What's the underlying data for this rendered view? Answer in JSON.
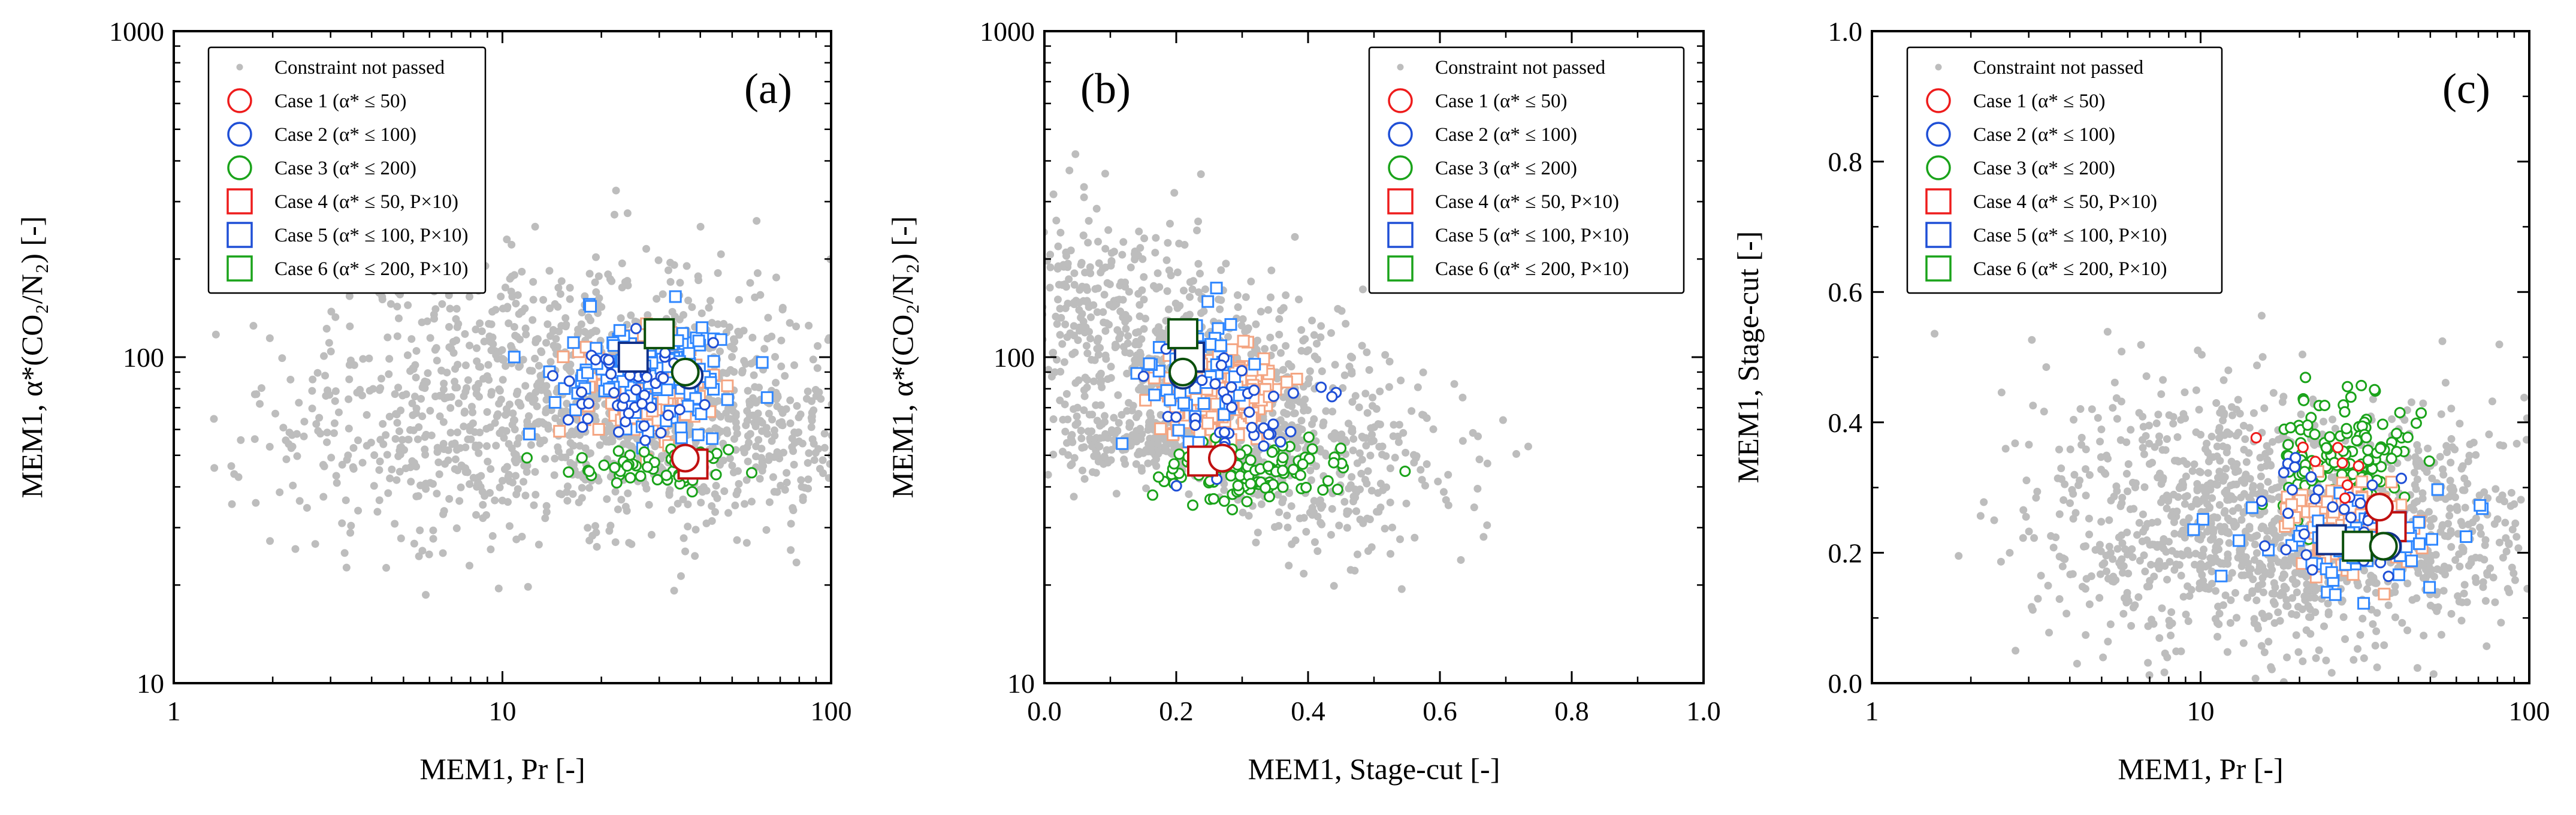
{
  "chart_data": [
    {
      "id": "a",
      "type": "scatter",
      "panel_label": "(a)",
      "xlabel": "MEM1, Pr [-]",
      "ylabel": "MEM1, α*(CO₂/N₂) [-]",
      "xscale": "log",
      "xlim": [
        1,
        100
      ],
      "yscale": "log",
      "ylim": [
        10,
        1000
      ],
      "xticks": [
        {
          "v": 1,
          "t": "1"
        },
        {
          "v": 10,
          "t": "10"
        },
        {
          "v": 100,
          "t": "100"
        }
      ],
      "yticks": [
        {
          "v": 10,
          "t": "10"
        },
        {
          "v": 100,
          "t": "100"
        },
        {
          "v": 1000,
          "t": "1000"
        }
      ],
      "legend_position": "top-left",
      "clouds": [
        {
          "series": 0,
          "count": 1100,
          "cx": 18,
          "cy": 78,
          "sx": 0.4,
          "sy": 0.2,
          "seed": 11
        },
        {
          "series": 0,
          "count": 250,
          "cx": 50,
          "cy": 55,
          "sx": 0.3,
          "sy": 0.12,
          "seed": 12
        },
        {
          "series": 0,
          "count": 120,
          "cx": 5,
          "cy": 45,
          "sx": 0.25,
          "sy": 0.15,
          "seed": 13
        },
        {
          "series": 4,
          "count": 230,
          "cx": 28,
          "cy": 82,
          "sx": 0.09,
          "sy": 0.07,
          "seed": 14
        },
        {
          "series": 5,
          "count": 120,
          "cx": 30,
          "cy": 90,
          "sx": 0.14,
          "sy": 0.09,
          "seed": 15
        },
        {
          "series": 3,
          "count": 55,
          "cx": 30,
          "cy": 46,
          "sx": 0.13,
          "sy": 0.03,
          "seed": 16
        },
        {
          "series": 2,
          "count": 45,
          "cx": 24,
          "cy": 75,
          "sx": 0.1,
          "sy": 0.08,
          "seed": 17
        }
      ],
      "highlights": [
        {
          "series": 3,
          "x": 38,
          "y": 47
        },
        {
          "series": 4,
          "x": 25,
          "y": 100
        },
        {
          "series": 5,
          "x": 30,
          "y": 118
        },
        {
          "series": 0,
          "x": 36,
          "y": 49,
          "case": 0
        },
        {
          "series": 1,
          "x": 37,
          "y": 88
        },
        {
          "series": 2,
          "x": 36,
          "y": 90
        }
      ]
    },
    {
      "id": "b",
      "type": "scatter",
      "panel_label": "(b)",
      "xlabel": "MEM1, Stage-cut [-]",
      "ylabel": "MEM1, α*(CO₂/N₂) [-]",
      "xscale": "linear",
      "xlim": [
        0,
        1
      ],
      "yscale": "log",
      "ylim": [
        10,
        1000
      ],
      "xticks": [
        {
          "v": 0,
          "t": "0.0"
        },
        {
          "v": 0.2,
          "t": "0.2"
        },
        {
          "v": 0.4,
          "t": "0.4"
        },
        {
          "v": 0.6,
          "t": "0.6"
        },
        {
          "v": 0.8,
          "t": "0.8"
        },
        {
          "v": 1.0,
          "t": "1.0"
        }
      ],
      "yticks": [
        {
          "v": 10,
          "t": "10"
        },
        {
          "v": 100,
          "t": "100"
        },
        {
          "v": 1000,
          "t": "1000"
        }
      ],
      "legend_position": "top-right",
      "clouds": [
        {
          "series": 0,
          "count": 900,
          "trend": "decay",
          "x0": 0.0,
          "x1": 0.5,
          "y0": 170,
          "y1": 45,
          "sx": 0.05,
          "sy": 0.17,
          "seed": 21
        },
        {
          "series": 0,
          "count": 300,
          "cx": 0.18,
          "cy": 55,
          "sx": 0.09,
          "sy": 0.06,
          "seed": 22
        },
        {
          "series": 0,
          "count": 60,
          "cx": 0.55,
          "cy": 45,
          "sx": 0.08,
          "sy": 0.12,
          "seed": 23
        },
        {
          "series": 4,
          "count": 230,
          "cx": 0.26,
          "cy": 75,
          "sx": 0.04,
          "sy": 0.07,
          "seed": 24
        },
        {
          "series": 3,
          "count": 110,
          "cx": 0.32,
          "cy": 44,
          "sx": 0.07,
          "sy": 0.04,
          "seed": 25
        },
        {
          "series": 5,
          "count": 50,
          "cx": 0.24,
          "cy": 95,
          "sx": 0.05,
          "sy": 0.12,
          "seed": 26
        },
        {
          "series": 2,
          "count": 40,
          "cx": 0.28,
          "cy": 70,
          "sx": 0.06,
          "sy": 0.1,
          "seed": 27
        }
      ],
      "highlights": [
        {
          "series": 3,
          "x": 0.24,
          "y": 48
        },
        {
          "series": 4,
          "x": 0.22,
          "y": 100
        },
        {
          "series": 5,
          "x": 0.21,
          "y": 118
        },
        {
          "series": 0,
          "x": 0.27,
          "y": 49
        },
        {
          "series": 1,
          "x": 0.21,
          "y": 88
        },
        {
          "series": 2,
          "x": 0.21,
          "y": 90
        }
      ]
    },
    {
      "id": "c",
      "type": "scatter",
      "panel_label": "(c)",
      "xlabel": "MEM1, Pr [-]",
      "ylabel": "MEM1, Stage-cut [-]",
      "xscale": "log",
      "xlim": [
        1,
        100
      ],
      "yscale": "linear",
      "ylim": [
        0,
        1
      ],
      "xticks": [
        {
          "v": 1,
          "t": "1"
        },
        {
          "v": 10,
          "t": "10"
        },
        {
          "v": 100,
          "t": "100"
        }
      ],
      "yticks": [
        {
          "v": 0,
          "t": "0.0"
        },
        {
          "v": 0.2,
          "t": "0.2"
        },
        {
          "v": 0.4,
          "t": "0.4"
        },
        {
          "v": 0.6,
          "t": "0.6"
        },
        {
          "v": 0.8,
          "t": "0.8"
        },
        {
          "v": 1.0,
          "t": "1.0"
        }
      ],
      "legend_position": "top-left",
      "clouds": [
        {
          "series": 0,
          "count": 1150,
          "cx": 17,
          "cy": 0.24,
          "sx": 0.32,
          "sy": 0.09,
          "seed": 31
        },
        {
          "series": 0,
          "count": 150,
          "cx": 60,
          "cy": 0.25,
          "sx": 0.2,
          "sy": 0.08,
          "seed": 32
        },
        {
          "series": 0,
          "count": 80,
          "cx": 6,
          "cy": 0.3,
          "sx": 0.2,
          "sy": 0.12,
          "seed": 33
        },
        {
          "series": 3,
          "count": 160,
          "cx": 27,
          "cy": 0.34,
          "sx": 0.11,
          "sy": 0.05,
          "seed": 34
        },
        {
          "series": 4,
          "count": 150,
          "cx": 28,
          "cy": 0.24,
          "sx": 0.09,
          "sy": 0.035,
          "seed": 35
        },
        {
          "series": 5,
          "count": 60,
          "cx": 30,
          "cy": 0.22,
          "sx": 0.2,
          "sy": 0.04,
          "seed": 36
        },
        {
          "series": 2,
          "count": 30,
          "cx": 25,
          "cy": 0.25,
          "sx": 0.1,
          "sy": 0.05,
          "seed": 37
        },
        {
          "series": 1,
          "count": 8,
          "cx": 22,
          "cy": 0.33,
          "sx": 0.12,
          "sy": 0.06,
          "seed": 38
        }
      ],
      "highlights": [
        {
          "series": 3,
          "x": 38,
          "y": 0.24
        },
        {
          "series": 4,
          "x": 25,
          "y": 0.22
        },
        {
          "series": 5,
          "x": 30,
          "y": 0.21
        },
        {
          "series": 0,
          "x": 35,
          "y": 0.27
        },
        {
          "series": 1,
          "x": 37,
          "y": 0.21
        },
        {
          "series": 2,
          "x": 36,
          "y": 0.21
        }
      ]
    }
  ],
  "legend": {
    "constraint_label": "Constraint not passed",
    "constraint_color": "#bdbdbd",
    "items": [
      {
        "label": "Case 1 (α* ≤ 50)",
        "marker": "circle",
        "color": "#ee1c1c",
        "fill": "#f4a582"
      },
      {
        "label": "Case 2 (α* ≤ 100)",
        "marker": "circle",
        "color": "#1f4fd6",
        "fill": "#1f78b4"
      },
      {
        "label": "Case 3 (α* ≤ 200)",
        "marker": "circle",
        "color": "#1aa31a",
        "fill": "#33a02c"
      },
      {
        "label": "Case 4 (α* ≤ 50, P×10)",
        "marker": "square",
        "color": "#ee1c1c",
        "fill": "#f4a582"
      },
      {
        "label": "Case 5 (α* ≤ 100, P×10)",
        "marker": "square",
        "color": "#1f4fd6",
        "fill": "#1f78b4"
      },
      {
        "label": "Case 6 (α* ≤ 200, P×10)",
        "marker": "square",
        "color": "#1aa31a",
        "fill": "#33a02c"
      }
    ],
    "small_marker_colors": [
      "#bdbdbd",
      "#4a90e2",
      "#3cc43c",
      "#f4a582",
      "#2e86ff",
      "#2fbf2f"
    ]
  }
}
